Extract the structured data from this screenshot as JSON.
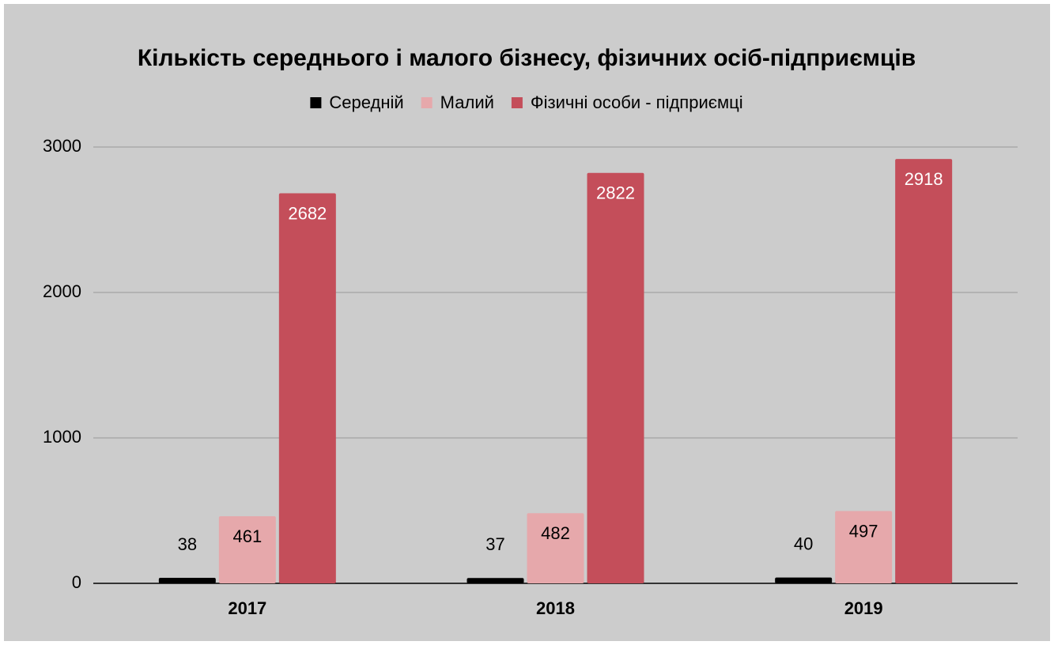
{
  "chart_data": {
    "type": "bar",
    "title": "Кількість середнього і малого бізнесу, фізичних осіб-підприємців",
    "categories": [
      "2017",
      "2018",
      "2019"
    ],
    "series": [
      {
        "name": "Середній",
        "color": "#000000",
        "values": [
          38,
          37,
          40
        ]
      },
      {
        "name": "Малий",
        "color": "#e6a8ab",
        "values": [
          461,
          482,
          497
        ]
      },
      {
        "name": "Фізичні особи - підприємці",
        "color": "#c44e5a",
        "values": [
          2682,
          2822,
          2918
        ]
      }
    ],
    "ylim": [
      0,
      3000
    ],
    "yticks": [
      0,
      1000,
      2000,
      3000
    ],
    "grid": true,
    "legend": "top"
  }
}
